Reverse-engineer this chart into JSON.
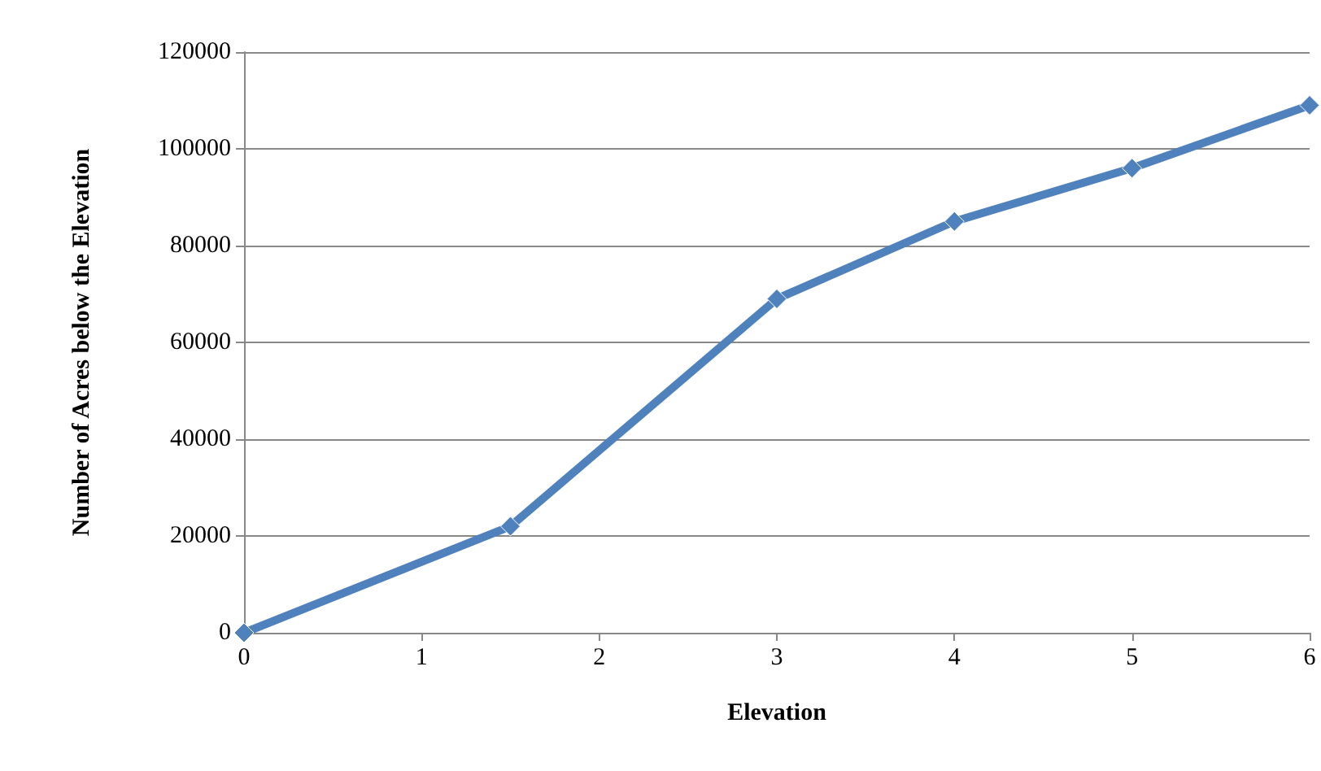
{
  "chart_data": {
    "type": "line",
    "xlabel": "Elevation",
    "ylabel": "Number of Acres below the Elevation",
    "x": [
      0,
      1.5,
      3,
      4,
      5,
      6
    ],
    "series": [
      {
        "color": "#4f81bd",
        "values": [
          0,
          22000,
          69000,
          85000,
          96000,
          109000
        ]
      }
    ],
    "xlim": [
      0,
      6
    ],
    "xticks": [
      0,
      1,
      2,
      3,
      4,
      5,
      6
    ],
    "ylim": [
      0,
      120000
    ],
    "yticks": [
      0,
      20000,
      40000,
      60000,
      80000,
      100000,
      120000
    ],
    "grid": "y",
    "marker": "diamond",
    "line_style": "solid"
  }
}
